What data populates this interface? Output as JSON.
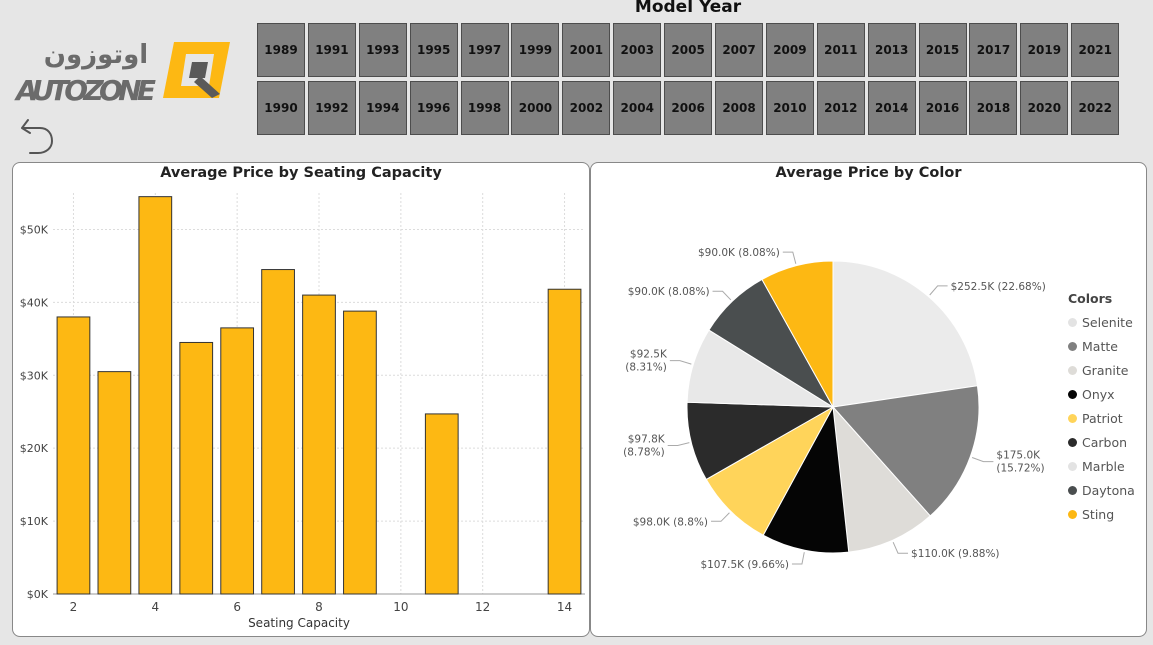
{
  "logo": {
    "arabic_text": "اوتوزون",
    "latin_text": "AUTOZONE"
  },
  "slicer": {
    "title": "Model Year",
    "years": [
      "1989",
      "1991",
      "1993",
      "1995",
      "1997",
      "1999",
      "2001",
      "2003",
      "2005",
      "2007",
      "2009",
      "2011",
      "2013",
      "2015",
      "2017",
      "2019",
      "2021",
      "1990",
      "1992",
      "1994",
      "1996",
      "1998",
      "2000",
      "2002",
      "2004",
      "2006",
      "2008",
      "2010",
      "2012",
      "2014",
      "2016",
      "2018",
      "2020",
      "2022"
    ]
  },
  "bar_chart": {
    "title": "Average Price by Seating Capacity",
    "xlabel": "Seating Capacity",
    "x_ticks": [
      "2",
      "4",
      "6",
      "8",
      "10",
      "12",
      "14"
    ],
    "y_ticks": [
      "$0K",
      "$10K",
      "$20K",
      "$30K",
      "$40K",
      "$50K"
    ]
  },
  "pie_chart": {
    "title": "Average Price by Color",
    "legend_title": "Colors"
  },
  "chart_data": [
    {
      "type": "bar",
      "title": "Average Price by Seating Capacity",
      "xlabel": "Seating Capacity",
      "ylabel": "",
      "x": [
        2,
        3,
        4,
        5,
        6,
        7,
        8,
        9,
        11,
        14
      ],
      "values": [
        38000,
        30500,
        54500,
        34500,
        36500,
        44500,
        41000,
        38800,
        24700,
        41800
      ],
      "xlim": [
        1.5,
        14.5
      ],
      "ylim": [
        0,
        55000
      ],
      "grid": true,
      "color": "#FDB813"
    },
    {
      "type": "pie",
      "title": "Average Price by Color",
      "legend_title": "Colors",
      "legend_position": "right",
      "slices": [
        {
          "name": "Selenite",
          "value": 252.5,
          "label": "$252.5K (22.68%)",
          "color": "#ebebeb"
        },
        {
          "name": "Matte",
          "value": 175.0,
          "label": "$175.0K\n(15.72%)",
          "color": "#808080"
        },
        {
          "name": "Granite",
          "value": 110.0,
          "label": "$110.0K (9.88%)",
          "color": "#dedcd8"
        },
        {
          "name": "Onyx",
          "value": 107.5,
          "label": "$107.5K (9.66%)",
          "color": "#050505"
        },
        {
          "name": "Patriot",
          "value": 98.0,
          "label": "$98.0K (8.8%)",
          "color": "#ffd45a"
        },
        {
          "name": "Carbon",
          "value": 97.8,
          "label": "$97.8K\n(8.78%)",
          "color": "#2b2b2b"
        },
        {
          "name": "Marble",
          "value": 92.5,
          "label": "$92.5K\n(8.31%)",
          "color": "#e8e8e8"
        },
        {
          "name": "Daytona",
          "value": 90.0,
          "label": "$90.0K (8.08%)",
          "color": "#4a4e4f"
        },
        {
          "name": "Sting",
          "value": 90.0,
          "label": "$90.0K (8.08%)",
          "color": "#fdb813"
        }
      ]
    }
  ]
}
